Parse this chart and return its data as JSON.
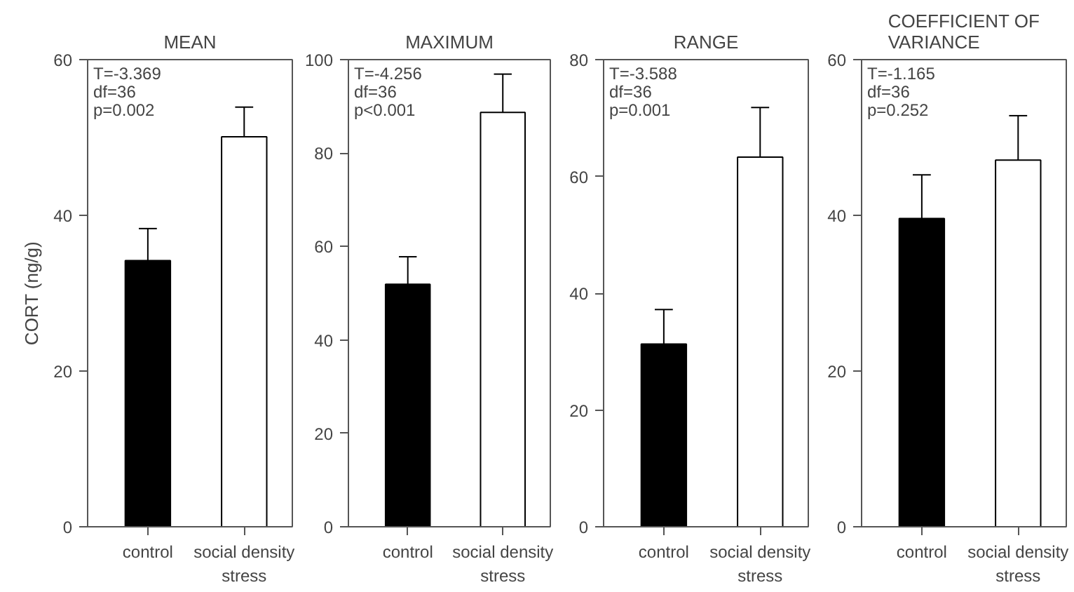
{
  "chart_data": [
    {
      "type": "bar",
      "title": "MEAN",
      "ylabel": "CORT (ng/g)",
      "categories": [
        "control",
        "social density\nstress"
      ],
      "values": [
        34.2,
        50.1
      ],
      "colors": [
        "#000000",
        "#ffffff"
      ],
      "errors": [
        [
          34.2,
          38.3
        ],
        [
          50.1,
          53.9
        ]
      ],
      "ylim": [
        0,
        60
      ],
      "yticks": [
        0,
        20,
        40,
        60
      ],
      "grid": false,
      "annotations": [
        "T=-3.369",
        "df=36",
        "p=0.002"
      ]
    },
    {
      "type": "bar",
      "title": "MAXIMUM",
      "categories": [
        "control",
        "social density\nstress"
      ],
      "values": [
        51.9,
        88.7
      ],
      "colors": [
        "#000000",
        "#ffffff"
      ],
      "errors": [
        [
          51.9,
          57.8
        ],
        [
          88.7,
          96.9
        ]
      ],
      "ylim": [
        0,
        100
      ],
      "yticks": [
        0,
        20,
        40,
        60,
        80,
        100
      ],
      "grid": false,
      "annotations": [
        "T=-4.256",
        "df=36",
        "p<0.001"
      ]
    },
    {
      "type": "bar",
      "title": "RANGE",
      "categories": [
        "control",
        "social density\nstress"
      ],
      "values": [
        31.3,
        63.3
      ],
      "colors": [
        "#000000",
        "#ffffff"
      ],
      "errors": [
        [
          31.3,
          37.2
        ],
        [
          63.3,
          71.8
        ]
      ],
      "ylim": [
        0,
        80
      ],
      "yticks": [
        0,
        20,
        40,
        60,
        80
      ],
      "grid": false,
      "annotations": [
        "T=-3.588",
        "df=36",
        "p=0.001"
      ]
    },
    {
      "type": "bar",
      "title": "COEFFICIENT OF\nVARIANCE",
      "categories": [
        "control",
        "social density\nstress"
      ],
      "values": [
        39.6,
        47.1
      ],
      "colors": [
        "#000000",
        "#ffffff"
      ],
      "errors": [
        [
          39.6,
          45.2
        ],
        [
          47.1,
          52.8
        ]
      ],
      "ylim": [
        0,
        60
      ],
      "yticks": [
        0,
        20,
        40,
        60
      ],
      "grid": false,
      "annotations": [
        "T=-1.165",
        "df=36",
        "p=0.252"
      ]
    }
  ]
}
